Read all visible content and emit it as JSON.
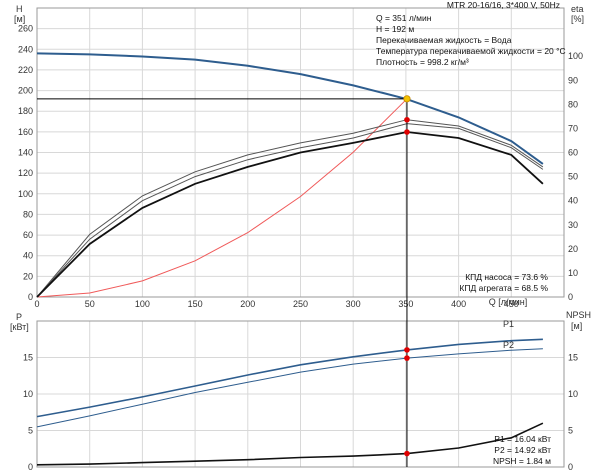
{
  "header": {
    "title": "MTR 20-16/16, 3*400 V, 50Hz",
    "h_axis_label": "H",
    "h_axis_unit": "[м]",
    "eta_axis_label": "eta",
    "eta_axis_unit": "[%]",
    "q_axis_label": "Q [л/мин]",
    "p_axis_label": "P",
    "p_axis_unit": "[кВт]",
    "npsh_axis_label": "NPSH",
    "npsh_axis_unit": "[м]"
  },
  "info": {
    "lines": [
      "Q = 351 л/мин",
      "H = 192 м",
      "Перекачиваемая жидкость = Вода",
      "Температура перекачиваемой жидкости = 20 °C",
      "Плотность = 998.2 кг/м³"
    ],
    "eta_pump": "КПД насоса = 73.6 %",
    "eta_unit": "КПД агрегата = 68.5 %",
    "p1": "P1 = 16.04 кВт",
    "p2": "P2 = 14.92 кВт",
    "npsh": "NPSH = 1.84 м"
  },
  "chart_data": [
    {
      "type": "line",
      "panel": "top",
      "x_ticks": [
        0,
        50,
        100,
        150,
        200,
        250,
        300,
        350,
        400,
        450
      ],
      "xlim": [
        0,
        500
      ],
      "left_axis": {
        "label": "H [м]",
        "ylim": [
          0,
          280
        ],
        "ticks": [
          0,
          20,
          40,
          60,
          80,
          100,
          120,
          140,
          160,
          180,
          200,
          220,
          240,
          260
        ]
      },
      "right_axis": {
        "label": "eta [%]",
        "ylim": [
          0,
          120
        ],
        "ticks": [
          0,
          10,
          20,
          30,
          40,
          50,
          60,
          70,
          80,
          90,
          100
        ]
      },
      "series": [
        {
          "id": "head",
          "axis": "left",
          "color": "#2e5d8e",
          "x": [
            0,
            50,
            100,
            150,
            200,
            250,
            300,
            350,
            400,
            450,
            480
          ],
          "y": [
            236,
            235,
            233,
            230,
            224,
            216,
            205,
            192,
            174,
            151,
            129
          ]
        },
        {
          "id": "system",
          "axis": "left",
          "color": "#f05a5a",
          "x": [
            0,
            50,
            100,
            150,
            200,
            250,
            300,
            351
          ],
          "y": [
            0,
            3.9,
            15.6,
            35.1,
            62.4,
            97.4,
            140.3,
            192
          ]
        },
        {
          "id": "eta-pump",
          "axis": "right",
          "color": "#555555",
          "x": [
            0,
            50,
            100,
            150,
            200,
            250,
            300,
            351,
            400,
            450,
            480
          ],
          "y": [
            0,
            26,
            42,
            52,
            59,
            64,
            68,
            73.6,
            71,
            63,
            54
          ]
        },
        {
          "id": "eta-pump-inner",
          "axis": "right",
          "color": "#555555",
          "x": [
            0,
            50,
            100,
            150,
            200,
            250,
            300,
            351,
            400,
            450,
            480
          ],
          "y": [
            0,
            24,
            40,
            50,
            57,
            62,
            66,
            72,
            70,
            62,
            53
          ]
        },
        {
          "id": "eta-unit",
          "axis": "right",
          "color": "#111111",
          "x": [
            0,
            50,
            100,
            150,
            200,
            250,
            300,
            351,
            400,
            450,
            480
          ],
          "y": [
            0,
            22,
            37,
            47,
            54,
            60,
            64,
            68.5,
            66,
            59,
            47
          ]
        }
      ],
      "operating_point": {
        "q": 351,
        "h": 192
      }
    },
    {
      "type": "line",
      "panel": "bottom",
      "x_ticks": [
        0,
        50,
        100,
        150,
        200,
        250,
        300,
        350,
        400,
        450
      ],
      "xlim": [
        0,
        500
      ],
      "left_axis": {
        "label": "P [кВт]",
        "ylim": [
          0,
          20
        ],
        "ticks": [
          0,
          5,
          10,
          15
        ]
      },
      "right_axis": {
        "label": "NPSH [м]",
        "ylim": [
          0,
          20
        ],
        "ticks": [
          0,
          5,
          10,
          15
        ]
      },
      "series": [
        {
          "id": "p1",
          "name": "P1",
          "axis": "left",
          "color": "#2e5d8e",
          "x": [
            0,
            50,
            100,
            150,
            200,
            250,
            300,
            351,
            400,
            450,
            480
          ],
          "y": [
            6.9,
            8.2,
            9.6,
            11.1,
            12.6,
            14.0,
            15.1,
            16.04,
            16.8,
            17.3,
            17.5
          ]
        },
        {
          "id": "p2",
          "name": "P2",
          "axis": "left",
          "color": "#2e5d8e",
          "x": [
            0,
            50,
            100,
            150,
            200,
            250,
            300,
            351,
            400,
            450,
            480
          ],
          "y": [
            5.5,
            7.0,
            8.6,
            10.2,
            11.6,
            13.0,
            14.1,
            14.92,
            15.5,
            16.0,
            16.2
          ]
        },
        {
          "id": "npsh",
          "axis": "right",
          "color": "#111111",
          "x": [
            0,
            50,
            100,
            150,
            200,
            250,
            300,
            351,
            400,
            450,
            480
          ],
          "y": [
            0.3,
            0.4,
            0.6,
            0.8,
            1.0,
            1.3,
            1.5,
            1.84,
            2.6,
            4.0,
            6.0
          ]
        }
      ],
      "operating_points": [
        {
          "series": "p1",
          "y": 16.04
        },
        {
          "series": "p2",
          "y": 14.92
        },
        {
          "series": "npsh",
          "y": 1.84
        }
      ]
    }
  ]
}
